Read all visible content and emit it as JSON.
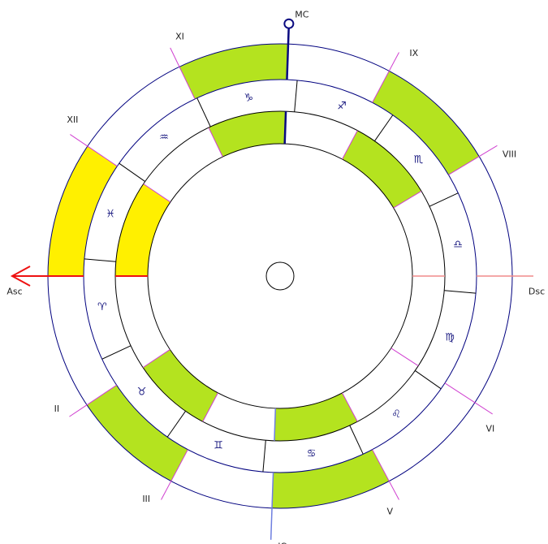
{
  "chart": {
    "zodiac_start_sign": "Aries",
    "signs": [
      {
        "name": "Aries",
        "glyph": "♈︎"
      },
      {
        "name": "Taurus",
        "glyph": "♉︎"
      },
      {
        "name": "Gemini",
        "glyph": "♊︎"
      },
      {
        "name": "Cancer",
        "glyph": "♋︎"
      },
      {
        "name": "Leo",
        "glyph": "♌︎"
      },
      {
        "name": "Virgo",
        "glyph": "♍︎"
      },
      {
        "name": "Libra",
        "glyph": "♎︎"
      },
      {
        "name": "Scorpio",
        "glyph": "♏︎"
      },
      {
        "name": "Sagittarius",
        "glyph": "♐︎"
      },
      {
        "name": "Capricorn",
        "glyph": "♑︎"
      },
      {
        "name": "Aquarius",
        "glyph": "♒︎"
      },
      {
        "name": "Pisces",
        "glyph": "♓︎"
      }
    ],
    "houses": [
      {
        "label": "Asc",
        "number": "I",
        "longitude": 5,
        "fill": null
      },
      {
        "label": "II",
        "number": "II",
        "longitude": 38.7,
        "fill": "green"
      },
      {
        "label": "III",
        "number": "III",
        "longitude": 67,
        "fill": null
      },
      {
        "label": "IC",
        "number": "IV",
        "longitude": 93,
        "fill": "green"
      },
      {
        "label": "V",
        "number": "V",
        "longitude": 123,
        "fill": null
      },
      {
        "label": "VI",
        "number": "VI",
        "longitude": 152,
        "fill": null
      },
      {
        "label": "Dsc",
        "number": "VII",
        "longitude": 185,
        "fill": null
      },
      {
        "label": "VIII",
        "number": "VIII",
        "longitude": 216,
        "fill": "green"
      },
      {
        "label": "IX",
        "number": "IX",
        "longitude": 247,
        "fill": null
      },
      {
        "label": "MC",
        "number": "X",
        "longitude": 273,
        "fill": "green"
      },
      {
        "label": "XI",
        "number": "XI",
        "longitude": 300.7,
        "fill": null
      },
      {
        "label": "XII",
        "number": "XII",
        "longitude": 331,
        "fill": "yellow"
      }
    ],
    "colors": {
      "green": "#b4e31f",
      "yellow": "#fff000",
      "cusp": "#d040d0",
      "asc": "#ee1111",
      "dsc": "#f08a8a",
      "mc": "#0a0a80",
      "ic": "#6f7fe0",
      "outer_circle": "#00007f",
      "ring_lines": "#000000",
      "glyph": "#1a1a80"
    }
  }
}
